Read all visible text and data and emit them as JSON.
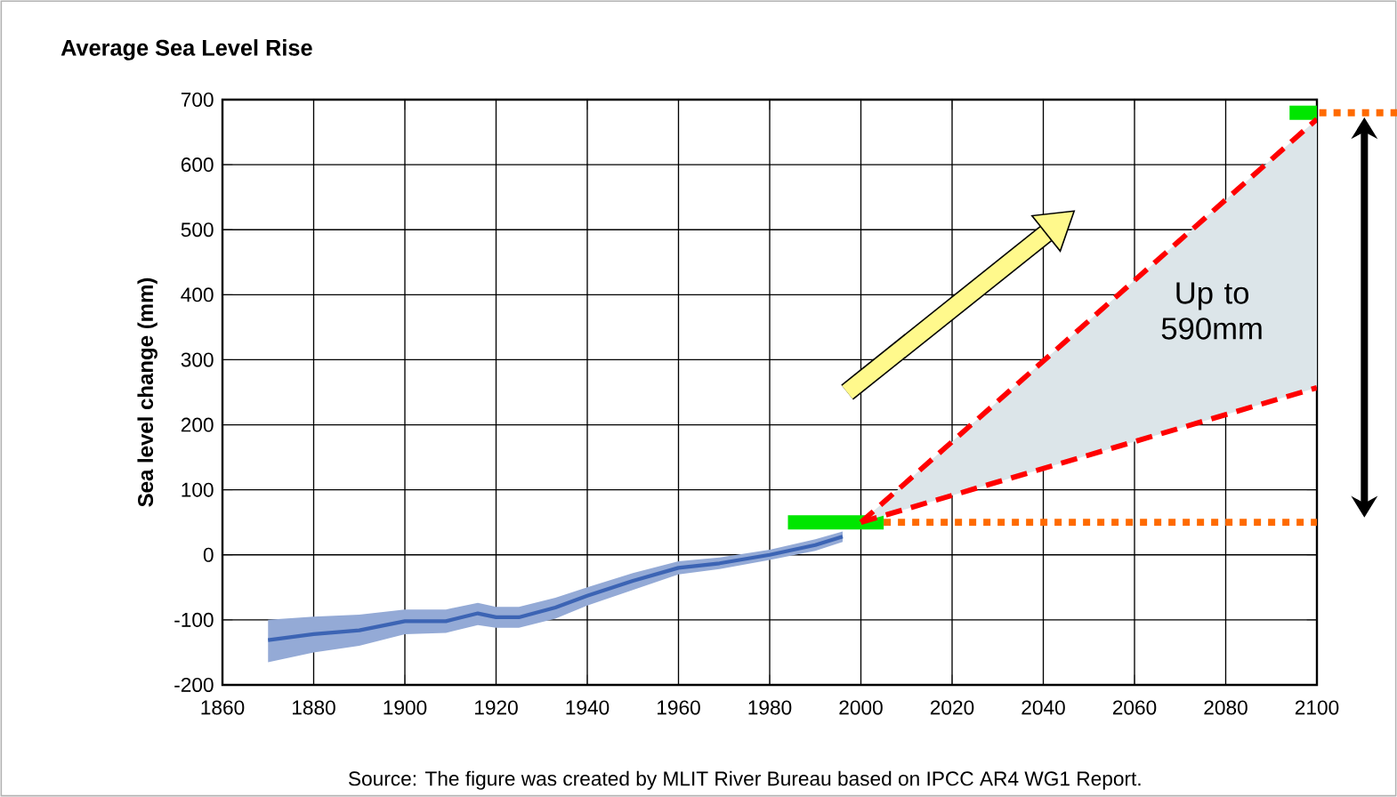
{
  "chart_data": {
    "type": "line",
    "title": "Average Sea Level Rise",
    "ylabel": "Sea level change (mm)",
    "xlim": [
      1860,
      2100
    ],
    "ylim": [
      -200,
      700
    ],
    "xticks": [
      1860,
      1880,
      1900,
      1920,
      1940,
      1960,
      1980,
      2000,
      2020,
      2040,
      2060,
      2080,
      2100
    ],
    "yticks": [
      -200,
      -100,
      0,
      100,
      200,
      300,
      400,
      500,
      600,
      700
    ],
    "grid": true,
    "annotations": [
      "Up to 590mm",
      "Source: The figure was created by MLIT River Bureau based on IPCC AR4 WG1 Report."
    ],
    "series": [
      {
        "color": "#3c64b4",
        "line_style": "solid",
        "x": [
          1870,
          1880,
          1890,
          1900,
          1909,
          1916,
          1920,
          1925,
          1933,
          1940,
          1950,
          1960,
          1969,
          1980,
          1990,
          1996
        ],
        "values": [
          -131,
          -122,
          -116,
          -102,
          -102,
          -90,
          -96,
          -96,
          -81,
          -63,
          -40,
          -20,
          -13,
          0,
          15,
          28
        ],
        "lower": [
          -165,
          -150,
          -140,
          -122,
          -120,
          -108,
          -112,
          -112,
          -98,
          -78,
          -54,
          -30,
          -22,
          -8,
          6,
          20
        ],
        "upper": [
          -100,
          -95,
          -92,
          -84,
          -84,
          -74,
          -80,
          -80,
          -66,
          -50,
          -28,
          -10,
          -4,
          8,
          24,
          36
        ]
      },
      {
        "color": "#00e600",
        "line_style": "solid",
        "x": [
          1984,
          2005
        ],
        "values": [
          50,
          50
        ]
      },
      {
        "color": "#00e600",
        "line_style": "solid",
        "x": [
          2094,
          2100
        ],
        "values": [
          680,
          680
        ]
      },
      {
        "color": "#ff6a00",
        "line_style": "dotted",
        "x": [
          2005,
          2100
        ],
        "values": [
          50,
          50
        ]
      },
      {
        "color": "#ff0000",
        "line_style": "dashed",
        "x": [
          2000,
          2100
        ],
        "values": [
          50,
          670
        ],
        "lower": [
          50,
          257
        ],
        "upper": [
          50,
          670
        ]
      },
      {
        "color": "#ff0000",
        "line_style": "dashed",
        "x": [
          2000,
          2100
        ],
        "values": [
          50,
          257
        ]
      }
    ]
  }
}
